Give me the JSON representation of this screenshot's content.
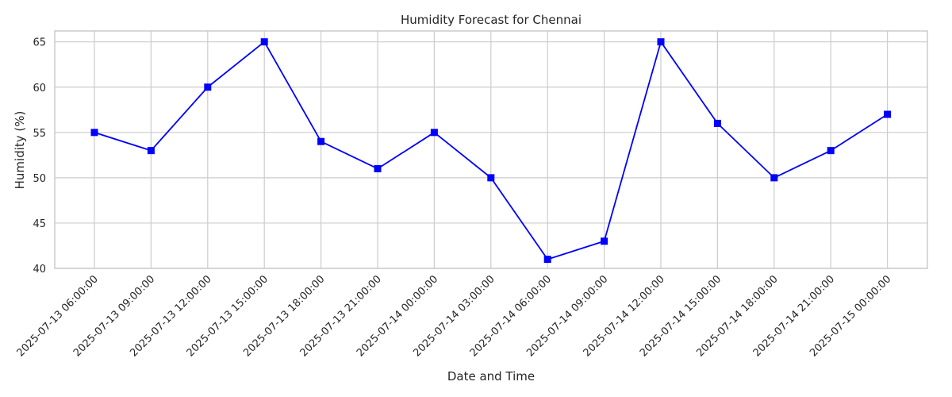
{
  "chart_data": {
    "type": "line",
    "title": "Humidity Forecast for Chennai",
    "xlabel": "Date and Time",
    "ylabel": "Humidity (%)",
    "categories": [
      "2025-07-13 06:00:00",
      "2025-07-13 09:00:00",
      "2025-07-13 12:00:00",
      "2025-07-13 15:00:00",
      "2025-07-13 18:00:00",
      "2025-07-13 21:00:00",
      "2025-07-14 00:00:00",
      "2025-07-14 03:00:00",
      "2025-07-14 06:00:00",
      "2025-07-14 09:00:00",
      "2025-07-14 12:00:00",
      "2025-07-14 15:00:00",
      "2025-07-14 18:00:00",
      "2025-07-14 21:00:00",
      "2025-07-15 00:00:00"
    ],
    "series": [
      {
        "values": [
          55,
          53,
          60,
          65,
          54,
          51,
          55,
          50,
          41,
          43,
          65,
          56,
          50,
          53,
          57
        ],
        "color": "#0000ff",
        "marker": "square"
      }
    ],
    "yticks": [
      40,
      45,
      50,
      55,
      60,
      65
    ],
    "ylim": [
      40,
      66.2
    ],
    "grid": true,
    "legend": "none",
    "colors": {
      "grid": "#cccccc",
      "text": "#262626",
      "background": "#ffffff"
    }
  }
}
